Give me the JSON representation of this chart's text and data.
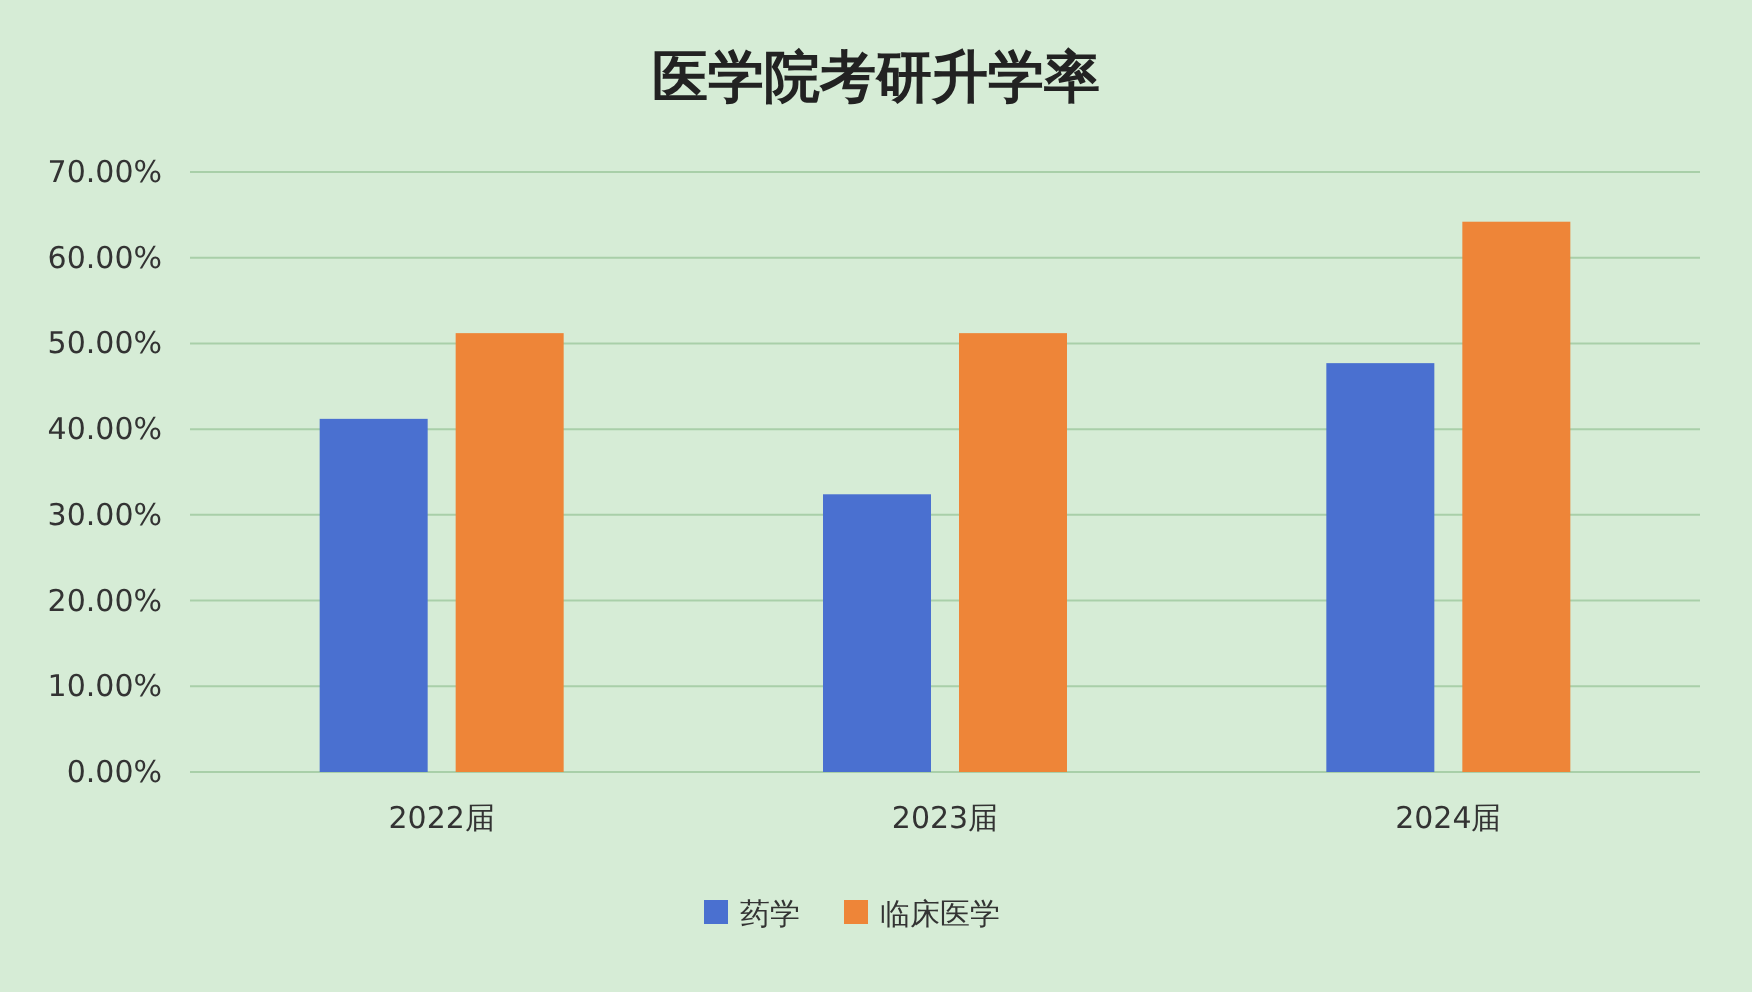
{
  "chart_data": {
    "type": "bar",
    "title": "医学院考研升学率",
    "categories": [
      "2022届",
      "2023届",
      "2024届"
    ],
    "series": [
      {
        "name": "药学",
        "color": "#4a70d0",
        "values": [
          41.2,
          32.4,
          47.7
        ]
      },
      {
        "name": "临床医学",
        "color": "#ee8538",
        "values": [
          51.2,
          51.2,
          64.2
        ]
      }
    ],
    "ylim": [
      0,
      70
    ],
    "yticks": [
      {
        "value": 0,
        "label": "0.00%"
      },
      {
        "value": 10,
        "label": "10.00%"
      },
      {
        "value": 20,
        "label": "20.00%"
      },
      {
        "value": 30,
        "label": "30.00%"
      },
      {
        "value": 40,
        "label": "40.00%"
      },
      {
        "value": 50,
        "label": "50.00%"
      },
      {
        "value": 60,
        "label": "60.00%"
      },
      {
        "value": 70,
        "label": "70.00%"
      }
    ],
    "grid": "y",
    "legend": "bottom"
  }
}
